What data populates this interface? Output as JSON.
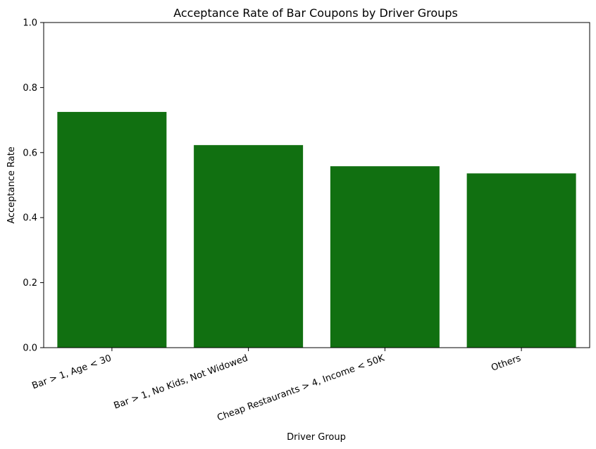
{
  "chart_data": {
    "type": "bar",
    "title": "Acceptance Rate of Bar Coupons by Driver Groups",
    "xlabel": "Driver Group",
    "ylabel": "Acceptance Rate",
    "categories": [
      "Bar > 1, Age < 30",
      "Bar > 1, No Kids, Not Widowed",
      "Cheap Restaurants > 4, Income < 50K",
      "Others"
    ],
    "values": [
      0.725,
      0.623,
      0.558,
      0.536
    ],
    "ylim": [
      0,
      1.0
    ],
    "yticks": [
      0.0,
      0.2,
      0.4,
      0.6,
      0.8,
      1.0
    ],
    "ytick_labels": [
      "0.0",
      "0.2",
      "0.4",
      "0.6",
      "0.8",
      "1.0"
    ],
    "bar_color": "#117011",
    "grid": false,
    "xtick_rotation": 20
  }
}
